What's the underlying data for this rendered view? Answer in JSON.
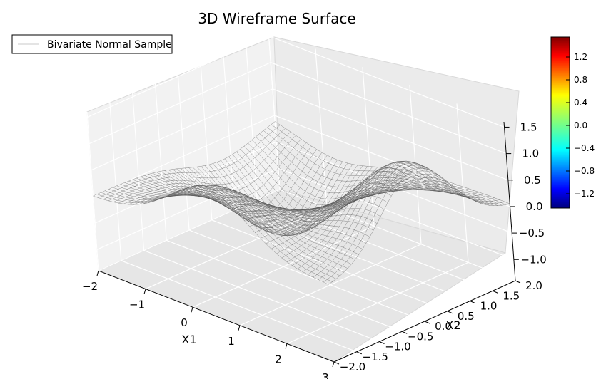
{
  "chart_data": {
    "type": "3d-wireframe",
    "title": "3D Wireframe Surface",
    "xlabel": "X1",
    "ylabel": "X2",
    "legend": {
      "entries": [
        "Bivariate Normal Sample"
      ],
      "placement": "upper-left"
    },
    "xlim": [
      -2,
      3
    ],
    "ylim": [
      -2,
      2
    ],
    "zlim": [
      -1.4,
      1.6
    ],
    "x_ticks": [
      -2,
      -1,
      0,
      1,
      2,
      3
    ],
    "y_ticks": [
      -2.0,
      -1.5,
      -1.0,
      -0.5,
      0.0,
      0.5,
      1.0,
      1.5,
      2.0
    ],
    "z_ticks": [
      -1.0,
      -0.5,
      0.0,
      0.5,
      1.0,
      1.5
    ],
    "x_tick_labels": [
      "−2",
      "−1",
      "0",
      "1",
      "2",
      "3"
    ],
    "y_tick_labels": [
      "−2.0",
      "−1.5",
      "−1.0",
      "−0.5",
      "0.0",
      "0.5",
      "1.0",
      "1.5",
      "2.0"
    ],
    "z_tick_labels": [
      "−1.0",
      "−0.5",
      "0.0",
      "0.5",
      "1.0",
      "1.5"
    ],
    "grid": true,
    "wire_color": "#555555",
    "surface_shape": {
      "peaks": [
        {
          "x1": 0.5,
          "x2": -2.0,
          "z": 1.0
        },
        {
          "x1": 2.8,
          "x2": 0.0,
          "z": 1.5
        }
      ],
      "troughs": [
        {
          "x1": -0.7,
          "x2": 0.8,
          "z": -1.3
        }
      ]
    },
    "colorbar": {
      "cmap": "jet",
      "range": [
        -1.45,
        1.55
      ],
      "ticks": [
        1.2,
        0.8,
        0.4,
        0.0,
        -0.4,
        -0.8,
        -1.2
      ],
      "tick_labels": [
        "1.2",
        "0.8",
        "0.4",
        "0.0",
        "−0.4",
        "−0.8",
        "−1.2"
      ]
    }
  }
}
